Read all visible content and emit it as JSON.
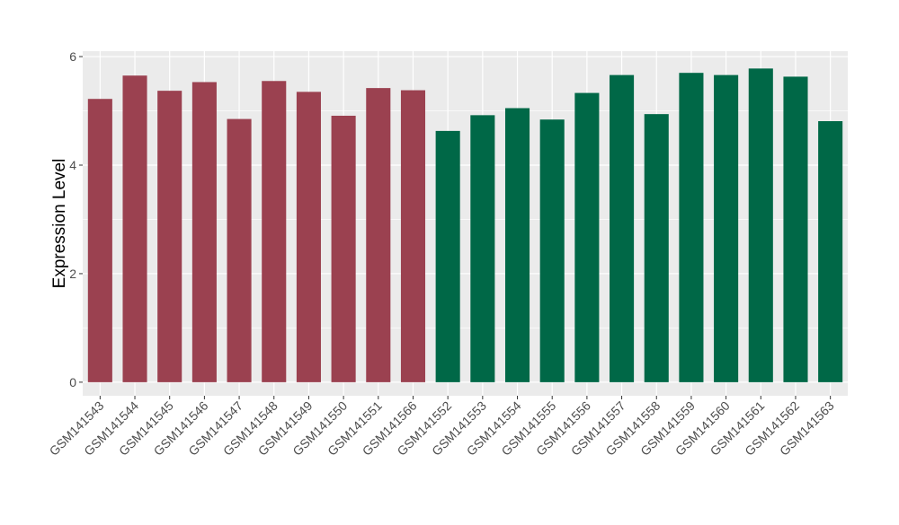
{
  "chart_data": {
    "type": "bar",
    "title": "",
    "xlabel": "",
    "ylabel": "Expression Level",
    "ylim": [
      -0.25,
      6.1
    ],
    "yticks": [
      0,
      2,
      4,
      6
    ],
    "grid": true,
    "legend": "none",
    "categories": [
      "GSM141543",
      "GSM141544",
      "GSM141545",
      "GSM141546",
      "GSM141547",
      "GSM141548",
      "GSM141549",
      "GSM141550",
      "GSM141551",
      "GSM141566",
      "GSM141552",
      "GSM141553",
      "GSM141554",
      "GSM141555",
      "GSM141556",
      "GSM141557",
      "GSM141558",
      "GSM141559",
      "GSM141560",
      "GSM141561",
      "GSM141562",
      "GSM141563"
    ],
    "values": [
      5.22,
      5.65,
      5.37,
      5.53,
      4.85,
      5.55,
      5.35,
      4.91,
      5.42,
      5.38,
      4.63,
      4.92,
      5.05,
      4.84,
      5.33,
      5.66,
      4.94,
      5.7,
      5.66,
      5.78,
      5.63,
      4.81
    ],
    "bar_colors": [
      "#9B4150",
      "#9B4150",
      "#9B4150",
      "#9B4150",
      "#9B4150",
      "#9B4150",
      "#9B4150",
      "#9B4150",
      "#9B4150",
      "#9B4150",
      "#006847",
      "#006847",
      "#006847",
      "#006847",
      "#006847",
      "#006847",
      "#006847",
      "#006847",
      "#006847",
      "#006847",
      "#006847",
      "#006847"
    ],
    "panel_background": "#EBEBEB",
    "grid_color": "#FFFFFF"
  }
}
